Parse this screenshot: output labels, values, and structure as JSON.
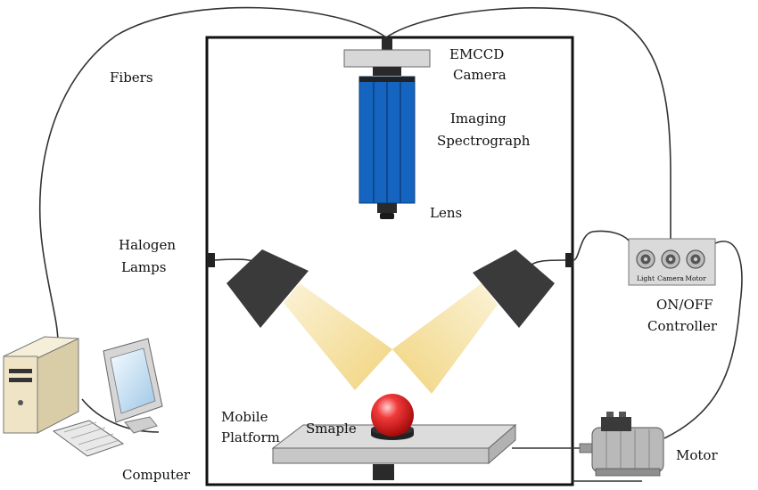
{
  "labels": {
    "fibers": "Fibers",
    "emccd_line1": "EMCCD",
    "emccd_line2": "Camera",
    "spectrograph_line1": "Imaging",
    "spectrograph_line2": "Spectrograph",
    "lens": "Lens",
    "halogen_line1": "Halogen",
    "halogen_line2": "Lamps",
    "controller_line1": "ON/OFF",
    "controller_line2": "Controller",
    "platform_line1": "Mobile",
    "platform_line2": "Platform",
    "sample": "Smaple",
    "computer": "Computer",
    "motor": "Motor"
  },
  "controller_buttons": [
    "Light",
    "Camera",
    "Motor"
  ],
  "colors": {
    "spectrograph": "#1565c0",
    "lamp": "#3a3a3a",
    "light_beam": "#f3dc94",
    "sample": "#e02020",
    "platform": "#d4d4d4",
    "computer": "#efe5c6"
  }
}
